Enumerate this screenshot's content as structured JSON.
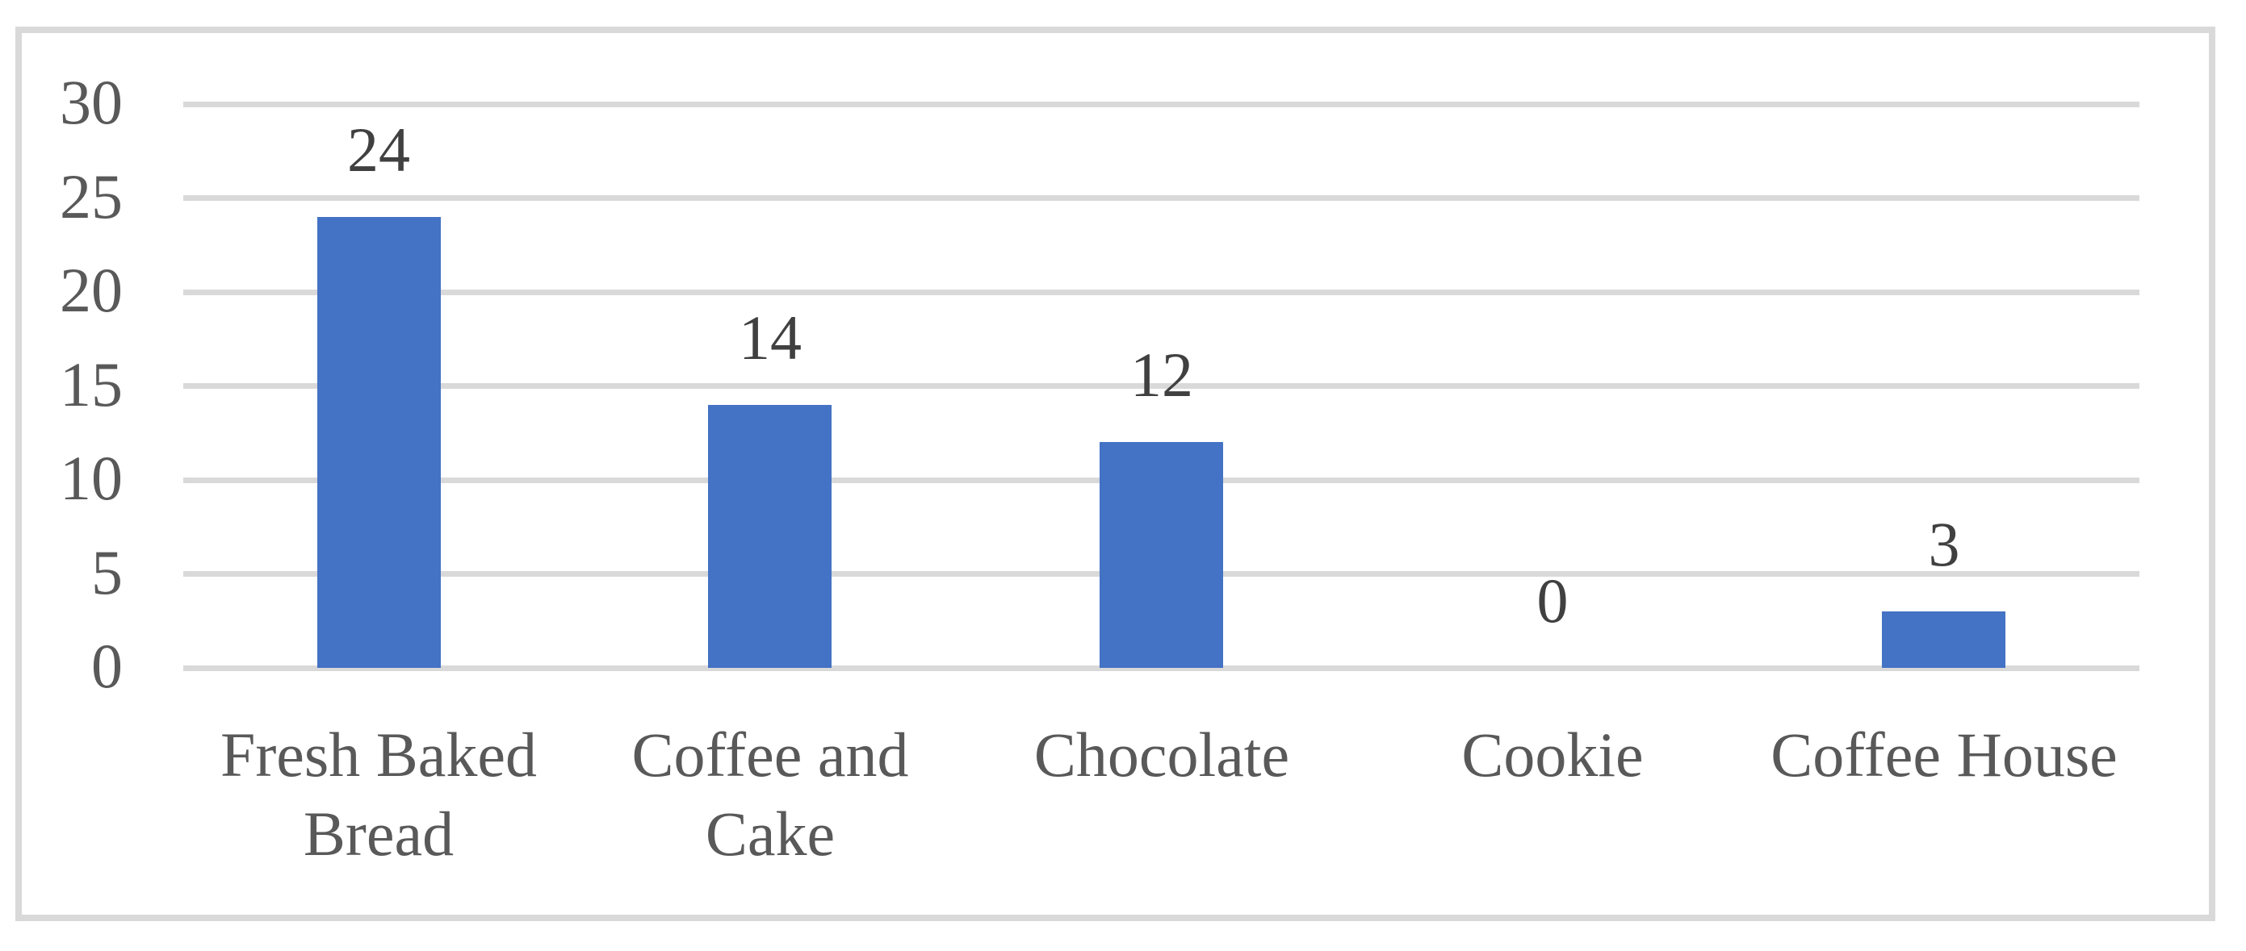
{
  "chart_data": {
    "type": "bar",
    "categories": [
      "Fresh Baked Bread",
      "Coffee and Cake",
      "Chocolate",
      "Cookie",
      "Coffee House"
    ],
    "values": [
      24,
      14,
      12,
      0,
      3
    ],
    "data_labels": [
      "24",
      "14",
      "12",
      "0",
      "3"
    ],
    "yticks": [
      "0",
      "5",
      "10",
      "15",
      "20",
      "25",
      "30"
    ],
    "ylim": [
      0,
      30
    ],
    "ytick_interval": 5,
    "title": "",
    "xlabel": "",
    "ylabel": "",
    "grid": true,
    "legend": false,
    "colors": {
      "bar": "#4472C4",
      "gridline": "#D9D9D9",
      "frame_border": "#D9D9D9",
      "axis_text": "#595959",
      "data_label_text": "#404040",
      "background": "#FFFFFF"
    }
  }
}
